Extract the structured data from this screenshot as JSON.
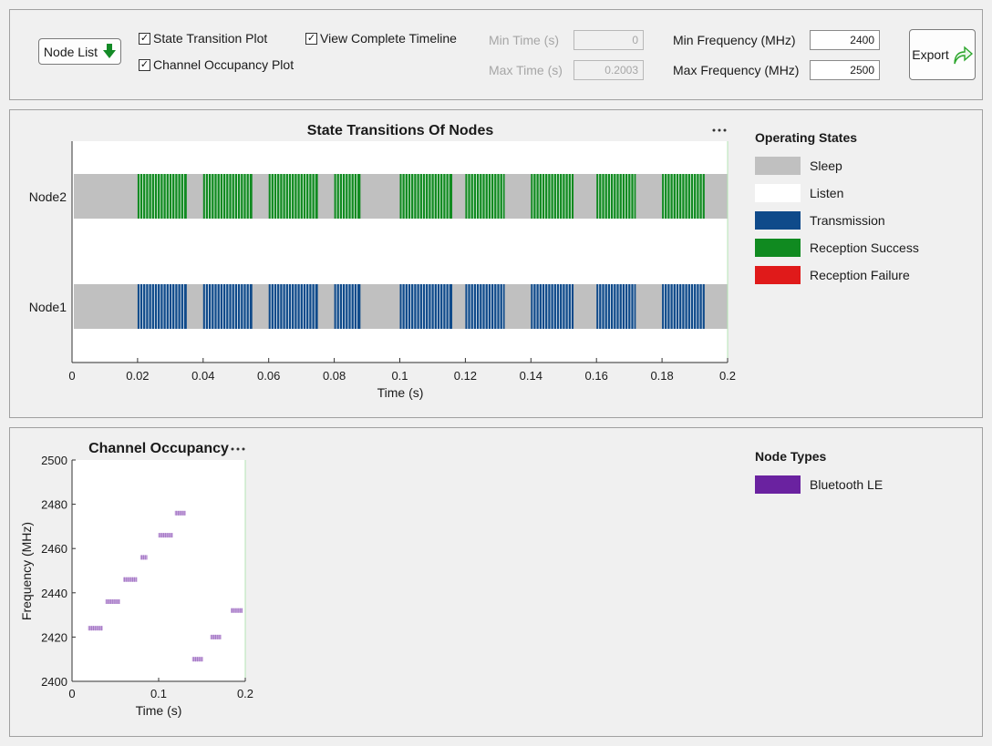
{
  "toolbar": {
    "node_list_label": "Node List",
    "state_transition_label": "State Transition Plot",
    "channel_occupancy_label": "Channel Occupancy Plot",
    "view_timeline_label": "View Complete Timeline",
    "state_transition_checked": true,
    "channel_occupancy_checked": true,
    "view_timeline_checked": true,
    "min_time_label": "Min Time (s)",
    "min_time_value": "0",
    "max_time_label": "Max Time (s)",
    "max_time_value": "0.2003",
    "min_freq_label": "Min Frequency (MHz)",
    "min_freq_value": "2400",
    "max_freq_label": "Max Frequency (MHz)",
    "max_freq_value": "2500",
    "export_label": "Export"
  },
  "state_plot": {
    "title": "State Transitions Of Nodes",
    "xlabel": "Time (s)",
    "more_icon": "more-options-icon",
    "nodes": [
      "Node2",
      "Node1"
    ],
    "xticks": [
      "0",
      "0.02",
      "0.04",
      "0.06",
      "0.08",
      "0.1",
      "0.12",
      "0.14",
      "0.16",
      "0.18",
      "0.2"
    ]
  },
  "state_legend": {
    "title": "Operating States",
    "items": [
      {
        "label": "Sleep",
        "color": "#c0c0c0"
      },
      {
        "label": "Listen",
        "color": "#ffffff"
      },
      {
        "label": "Transmission",
        "color": "#0f4a8a"
      },
      {
        "label": "Reception Success",
        "color": "#108a20"
      },
      {
        "label": "Reception Failure",
        "color": "#e01a1a"
      }
    ]
  },
  "chan_plot": {
    "title": "Channel Occupancy",
    "xlabel": "Time (s)",
    "ylabel": "Frequency (MHz)",
    "more_icon": "more-options-icon",
    "xticks": [
      "0",
      "0.1",
      "0.2"
    ],
    "yticks": [
      "2400",
      "2420",
      "2440",
      "2460",
      "2480",
      "2500"
    ]
  },
  "chan_legend": {
    "title": "Node Types",
    "items": [
      {
        "label": "Bluetooth LE",
        "color": "#6a22a0"
      }
    ]
  },
  "chart_data": [
    {
      "type": "bar",
      "title": "State Transitions Of Nodes",
      "xlabel": "Time (s)",
      "ylabel": "",
      "xlim": [
        0,
        0.2
      ],
      "categories": [
        "Node2",
        "Node1"
      ],
      "active_intervals": [
        [
          0.02,
          0.035
        ],
        [
          0.04,
          0.055
        ],
        [
          0.06,
          0.075
        ],
        [
          0.08,
          0.088
        ],
        [
          0.1,
          0.116
        ],
        [
          0.12,
          0.132
        ],
        [
          0.14,
          0.153
        ],
        [
          0.16,
          0.172
        ],
        [
          0.18,
          0.193
        ]
      ],
      "series": [
        {
          "name": "Node2",
          "state": "Reception Success"
        },
        {
          "name": "Node1",
          "state": "Transmission"
        }
      ]
    },
    {
      "type": "scatter",
      "title": "Channel Occupancy",
      "xlabel": "Time (s)",
      "ylabel": "Frequency (MHz)",
      "xlim": [
        0,
        0.2
      ],
      "ylim": [
        2400,
        2500
      ],
      "series": [
        {
          "name": "Bluetooth LE",
          "x": [
            0.027,
            0.047,
            0.067,
            0.083,
            0.108,
            0.125,
            0.145,
            0.166,
            0.19
          ],
          "y": [
            2424,
            2436,
            2446,
            2456,
            2466,
            2476,
            2410,
            2420,
            2432
          ]
        }
      ]
    }
  ]
}
